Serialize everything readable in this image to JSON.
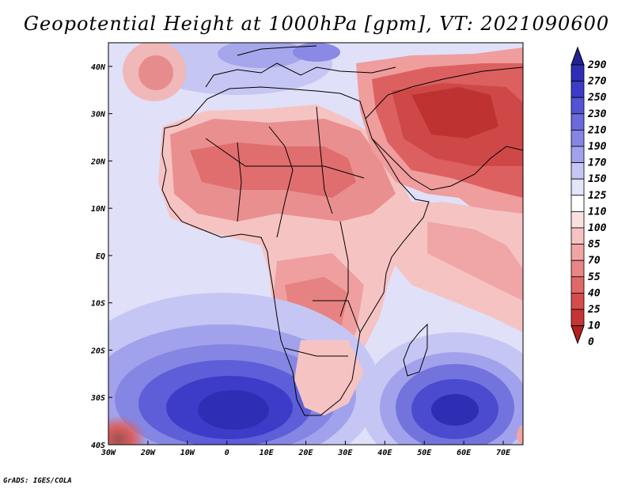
{
  "title": "Geopotential Height at 1000hPa [gpm], VT: 2021090600",
  "credit": "GrADS: IGES/COLA",
  "map": {
    "variable": "Geopotential Height",
    "level": "1000hPa",
    "units": "gpm",
    "valid_time": "2021090600",
    "lon_range": [
      -30,
      75
    ],
    "lat_range": [
      -40,
      45
    ],
    "lon_ticks": [
      "30W",
      "20W",
      "10W",
      "0",
      "10E",
      "20E",
      "30E",
      "40E",
      "50E",
      "60E",
      "70E"
    ],
    "lat_ticks": [
      "40N",
      "30N",
      "20N",
      "10N",
      "EQ",
      "10S",
      "20S",
      "30S",
      "40S"
    ]
  },
  "colorbar": {
    "levels": [
      "290",
      "270",
      "250",
      "230",
      "210",
      "190",
      "170",
      "150",
      "125",
      "110",
      "100",
      "85",
      "70",
      "55",
      "40",
      "25",
      "10",
      "0"
    ],
    "colors": [
      "#262294",
      "#2e2eb4",
      "#3c3cc8",
      "#5353d6",
      "#6a6adc",
      "#8585e4",
      "#a2a2ec",
      "#c6c6f4",
      "#e4e4fa",
      "#ffffff",
      "#fbe0e0",
      "#f6c3c3",
      "#f0a4a4",
      "#e98585",
      "#e06868",
      "#d54c4c",
      "#c73434",
      "#b41f1f"
    ]
  }
}
